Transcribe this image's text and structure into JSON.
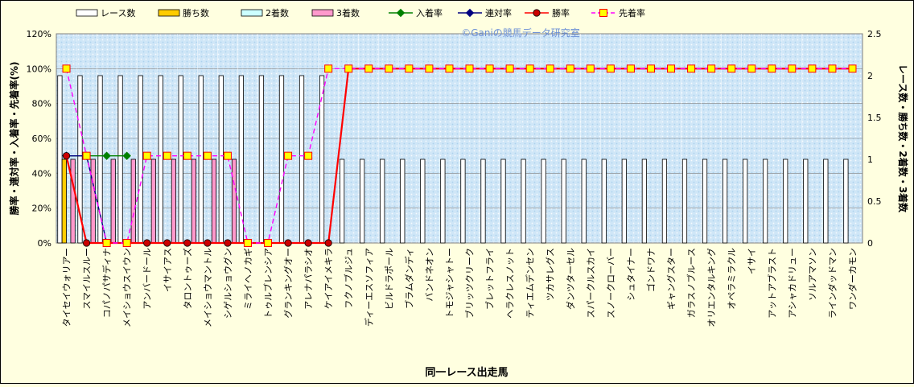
{
  "chart_data": {
    "type": "bar",
    "watermark": "©Ganiの競馬データ研究室",
    "xlabel": "同一レース出走馬",
    "ylabel_left": "勝率・連対率・入着率・先着率(%)",
    "ylabel_right": "レース数・勝ち数・2着数・3着数",
    "ylim_left": [
      0,
      120
    ],
    "ylim_right": [
      0,
      2.5
    ],
    "yticks_left": [
      "0%",
      "20%",
      "40%",
      "60%",
      "80%",
      "100%",
      "120%"
    ],
    "yticks_right": [
      "0",
      "0.5",
      "1",
      "1.5",
      "2",
      "2.5"
    ],
    "legend_position": "top",
    "grid": true,
    "categories": [
      "タイセイウォリアー",
      "スマイルスルー",
      "コパノパサディナ",
      "メイショウスイウン",
      "アンバードール",
      "イサイアス",
      "タロントゥーズ",
      "メイショウマントル",
      "シゲルショウグン",
      "ミライヘノカギ",
      "トゥルブレンシア",
      "グランキングオー",
      "アレナパラシオ",
      "ケイアイメキラ",
      "フクノブルジュ",
      "ディーエスソフィア",
      "ビルドラポール",
      "ブラムダンディ",
      "バンドネオン",
      "トモジャシャトー",
      "ブリッツクリーク",
      "ブレットフライ",
      "ヘラクレスノット",
      "ティエムデンセン",
      "ツカサレグス",
      "ダンツターセル",
      "スパークルスカイ",
      "スノークローバー",
      "シュタイナー",
      "ゴンドワナ",
      "ギャングスター",
      "ガラスノブルース",
      "オリエンタルキング",
      "オペラミラクル",
      "イサイ",
      "アットアブラスト",
      "アシャカドリュー",
      "ソルアマソン",
      "ラインダッドマン",
      "ワンダーカモン"
    ],
    "series": [
      {
        "name": "レース数",
        "kind": "bar",
        "axis": "right",
        "color": "#ffffff",
        "values": [
          2,
          2,
          2,
          2,
          2,
          2,
          2,
          2,
          2,
          2,
          2,
          2,
          2,
          2,
          1,
          1,
          1,
          1,
          1,
          1,
          1,
          1,
          1,
          1,
          1,
          1,
          1,
          1,
          1,
          1,
          1,
          1,
          1,
          1,
          1,
          1,
          1,
          1,
          1,
          1
        ]
      },
      {
        "name": "勝ち数",
        "kind": "bar",
        "axis": "right",
        "color": "#ffcc00",
        "values": [
          1,
          0,
          0,
          0,
          0,
          0,
          0,
          0,
          0,
          0,
          0,
          0,
          0,
          0,
          0,
          0,
          0,
          0,
          0,
          0,
          0,
          0,
          0,
          0,
          0,
          0,
          0,
          0,
          0,
          0,
          0,
          0,
          0,
          0,
          0,
          0,
          0,
          0,
          0,
          0
        ]
      },
      {
        "name": "2着数",
        "kind": "bar",
        "axis": "right",
        "color": "#ccffff",
        "values": [
          0,
          0,
          0,
          0,
          0,
          0,
          0,
          0,
          0,
          0,
          0,
          0,
          0,
          0,
          0,
          0,
          0,
          0,
          0,
          0,
          0,
          0,
          0,
          0,
          0,
          0,
          0,
          0,
          0,
          0,
          0,
          0,
          0,
          0,
          0,
          0,
          0,
          0,
          0,
          0
        ]
      },
      {
        "name": "3着数",
        "kind": "bar",
        "axis": "right",
        "color": "#ff99cc",
        "values": [
          1,
          1,
          1,
          1,
          1,
          1,
          1,
          1,
          1,
          0,
          0,
          0,
          0,
          0,
          0,
          0,
          0,
          0,
          0,
          0,
          0,
          0,
          0,
          0,
          0,
          0,
          0,
          0,
          0,
          0,
          0,
          0,
          0,
          0,
          0,
          0,
          0,
          0,
          0,
          0
        ]
      },
      {
        "name": "入着率",
        "kind": "line",
        "axis": "left",
        "color": "#008000",
        "marker": "diamond",
        "values": [
          50,
          50,
          50,
          50,
          null,
          null,
          null,
          null,
          null,
          null,
          null,
          null,
          null,
          null,
          null,
          null,
          null,
          null,
          null,
          null,
          null,
          null,
          null,
          null,
          null,
          null,
          null,
          null,
          null,
          null,
          null,
          null,
          null,
          null,
          null,
          null,
          null,
          null,
          null,
          null
        ]
      },
      {
        "name": "連対率",
        "kind": "line",
        "axis": "left",
        "color": "#000080",
        "marker": "diamond",
        "values": [
          50,
          50,
          0,
          null,
          null,
          null,
          null,
          null,
          null,
          null,
          null,
          null,
          null,
          null,
          null,
          null,
          null,
          null,
          null,
          null,
          null,
          null,
          null,
          null,
          null,
          null,
          null,
          null,
          null,
          null,
          null,
          null,
          null,
          null,
          null,
          null,
          null,
          null,
          null,
          null
        ]
      },
      {
        "name": "勝率",
        "kind": "line",
        "axis": "left",
        "color": "#ff0000",
        "marker": "circle",
        "values": [
          50,
          0,
          0,
          0,
          0,
          0,
          0,
          0,
          0,
          0,
          0,
          0,
          0,
          0,
          100,
          100,
          100,
          100,
          100,
          100,
          100,
          100,
          100,
          100,
          100,
          100,
          100,
          100,
          100,
          100,
          100,
          100,
          100,
          100,
          100,
          100,
          100,
          100,
          100,
          100
        ]
      },
      {
        "name": "先着率",
        "kind": "line",
        "axis": "left",
        "color": "#ff00ff",
        "dash": true,
        "marker": "square",
        "values": [
          100,
          50,
          0,
          0,
          50,
          50,
          50,
          50,
          50,
          0,
          0,
          50,
          50,
          100,
          100,
          100,
          100,
          100,
          100,
          100,
          100,
          100,
          100,
          100,
          100,
          100,
          100,
          100,
          100,
          100,
          100,
          100,
          100,
          100,
          100,
          100,
          100,
          100,
          100,
          100
        ]
      }
    ]
  }
}
